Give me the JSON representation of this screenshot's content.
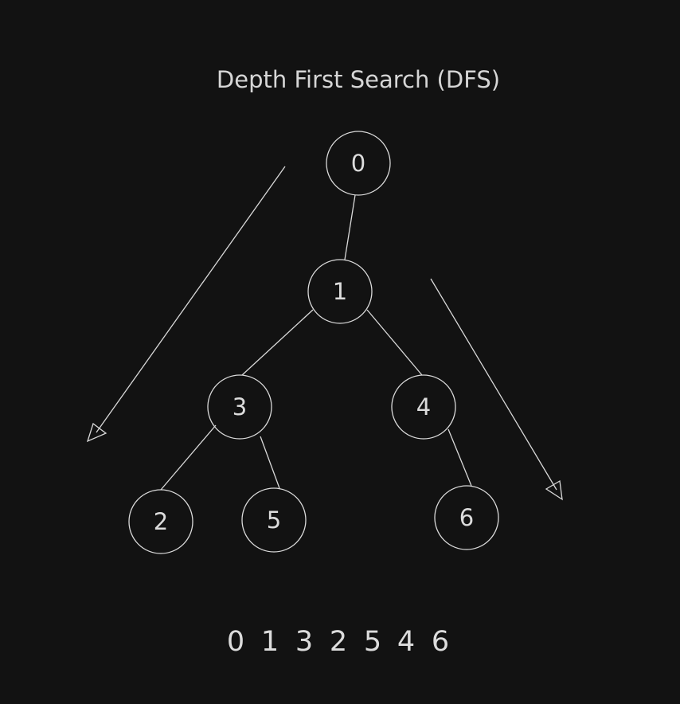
{
  "title": "Depth First Search (DFS)",
  "nodes": [
    {
      "id": "0",
      "label": "0"
    },
    {
      "id": "1",
      "label": "1"
    },
    {
      "id": "3",
      "label": "3"
    },
    {
      "id": "4",
      "label": "4"
    },
    {
      "id": "2",
      "label": "2"
    },
    {
      "id": "5",
      "label": "5"
    },
    {
      "id": "6",
      "label": "6"
    }
  ],
  "edges": [
    {
      "from": "0",
      "to": "1"
    },
    {
      "from": "1",
      "to": "3"
    },
    {
      "from": "1",
      "to": "4"
    },
    {
      "from": "3",
      "to": "2"
    },
    {
      "from": "3",
      "to": "5"
    },
    {
      "from": "4",
      "to": "6"
    }
  ],
  "traversal_order": [
    "0",
    "1",
    "3",
    "2",
    "5",
    "4",
    "6"
  ],
  "colors": {
    "background": "#121212",
    "stroke": "#d9d9d9",
    "text": "#dcdcdc"
  }
}
